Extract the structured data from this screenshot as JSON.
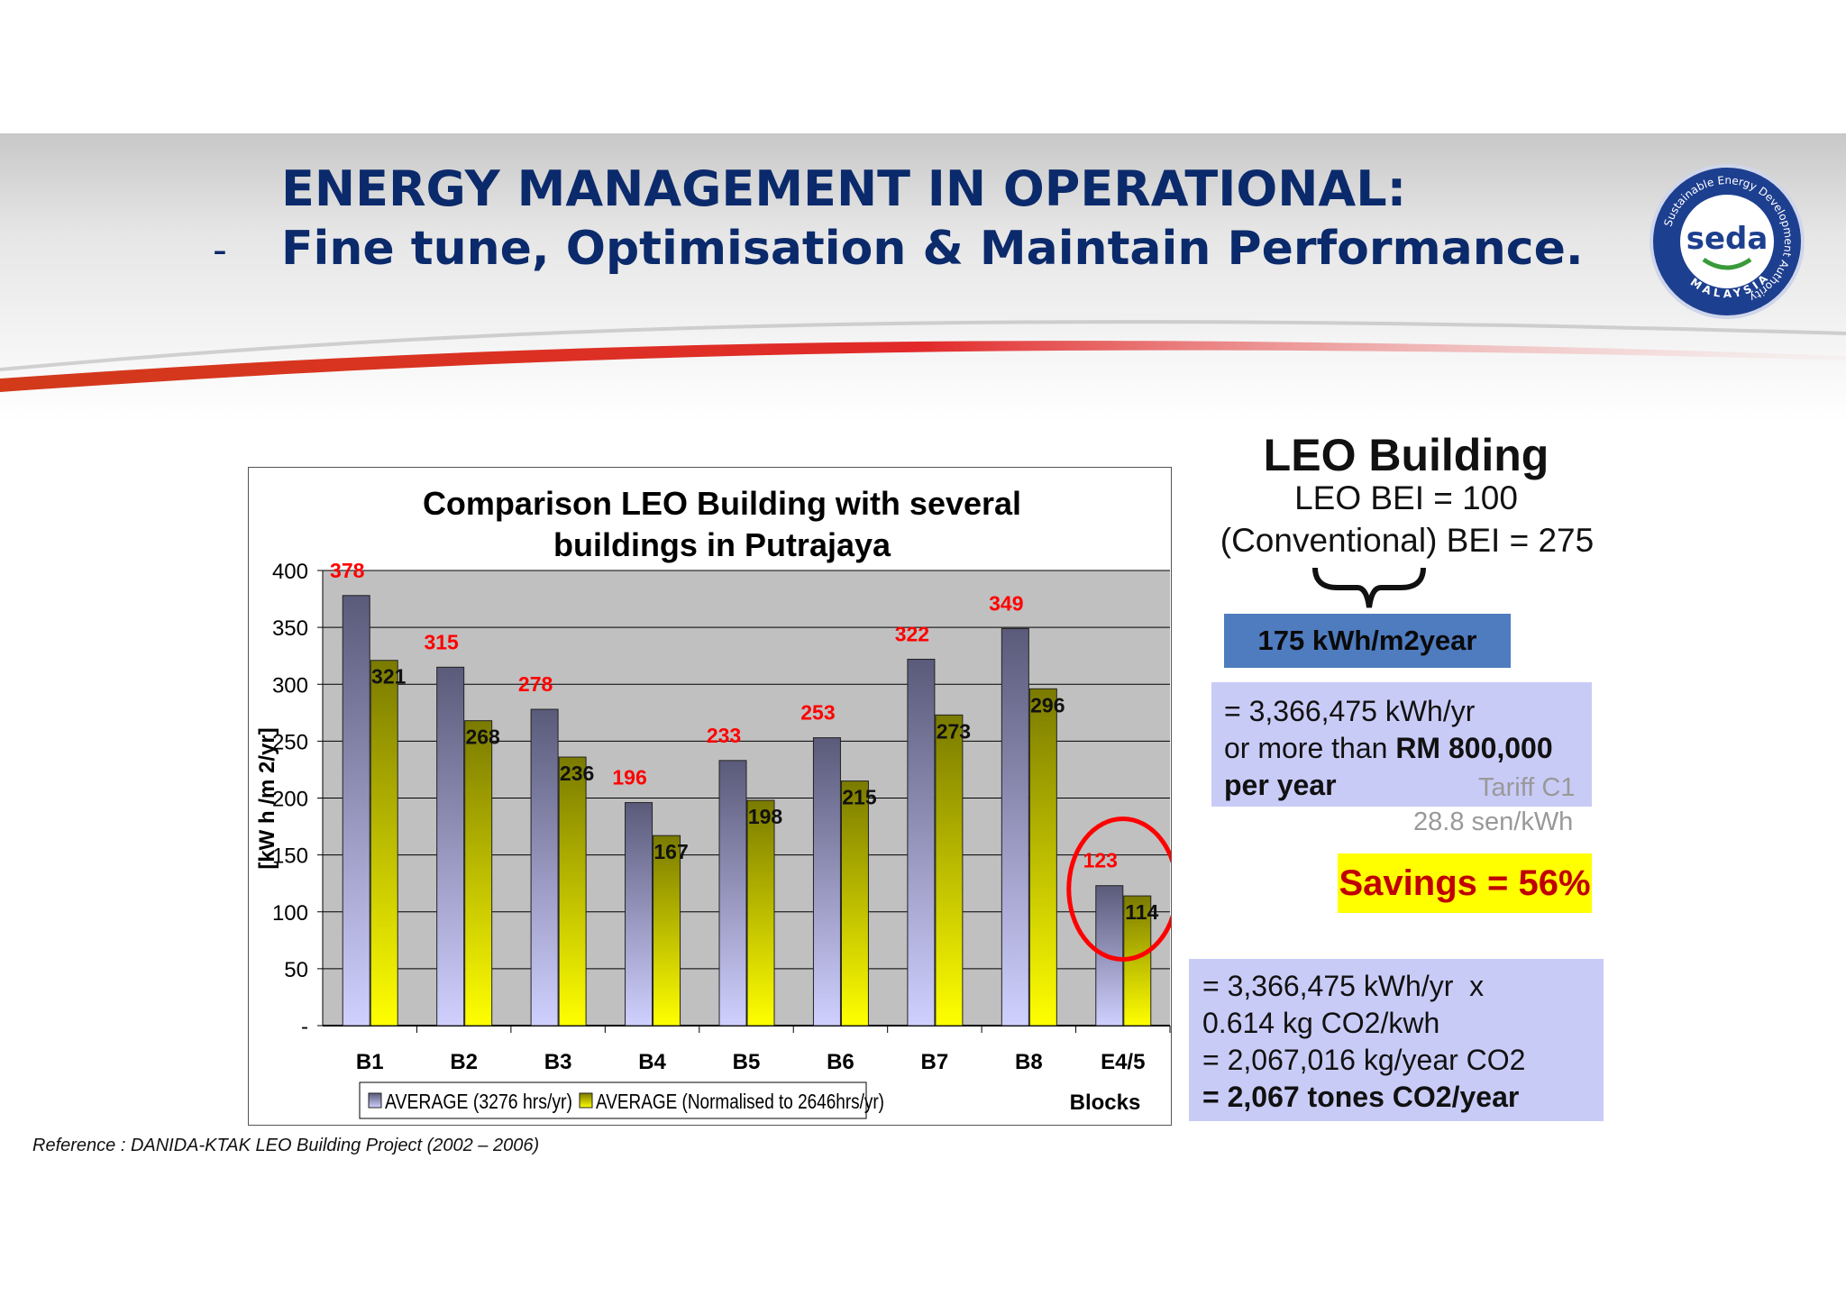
{
  "header": {
    "title_line1": "ENERGY MANAGEMENT IN OPERATIONAL:",
    "bullet": "-",
    "title_line2": "Fine tune, Optimisation & Maintain Performance."
  },
  "logo": {
    "text": "seda",
    "ring_text": "Sustainable Energy Development Authority",
    "country": "MALAYSIA",
    "icon": "seda-logo-icon"
  },
  "chart_data": {
    "type": "bar",
    "title": "Comparison LEO Building with several buildings in Putrajaya",
    "ylabel": "[kW h /m 2/yr]",
    "xlabel": "Blocks",
    "ylim": [
      0,
      400
    ],
    "yticks": [
      0,
      50,
      100,
      150,
      200,
      250,
      300,
      350,
      400
    ],
    "yticklabels": [
      "-",
      "50",
      "100",
      "150",
      "200",
      "250",
      "300",
      "350",
      "400"
    ],
    "categories": [
      "B1",
      "B2",
      "B3",
      "B4",
      "B5",
      "B6",
      "B7",
      "B8",
      "E4/5"
    ],
    "series": [
      {
        "name": "AVERAGE (3276 hrs/yr)",
        "values": [
          378,
          315,
          278,
          196,
          233,
          253,
          322,
          349,
          123
        ],
        "labels": [
          "378",
          "315",
          "278",
          "196",
          "233",
          "253",
          "322",
          "349",
          "123"
        ],
        "label_color": "#ff0000"
      },
      {
        "name": "AVERAGE (Normalised to 2646hrs/yr)",
        "values": [
          321,
          268,
          236,
          167,
          198,
          215,
          273,
          296,
          114
        ],
        "labels": [
          "321",
          "268",
          "236",
          "167",
          "198",
          "215",
          "273",
          "296",
          "114"
        ],
        "label_color": "#111111"
      }
    ],
    "legend_position": "bottom",
    "grid": true,
    "highlight": "E4/5",
    "colors": {
      "series1_top": "#5a5a7a",
      "series1_bottom": "#d0d0ff",
      "series2_top": "#7a7a00",
      "series2_bottom": "#ffff00",
      "plot_bg": "#c0c0c0",
      "highlight": "#ff0000"
    }
  },
  "side": {
    "title": "LEO Building",
    "line1": "LEO BEI = 100",
    "line2": "(Conventional) BEI = 275",
    "difference": "175 kWh/m2year",
    "energy_line": "= 3,366,475 kWh/yr",
    "cost_prefix": "or more than ",
    "cost_bold": "RM 800,000",
    "cost_suffix": "per year",
    "tariff_line1": "Tariff C1",
    "tariff_line2": "28.8 sen/kWh",
    "savings": "Savings = 56%",
    "co2_line1": "= 3,366,475 kWh/yr  x",
    "co2_line2": "0.614 kg CO2/kwh",
    "co2_line3": "= 2,067,016 kg/year CO2",
    "co2_line4": "= 2,067 tones CO2/year"
  },
  "reference": "Reference : DANIDA-KTAK LEO Building Project (2002 – 2006)"
}
